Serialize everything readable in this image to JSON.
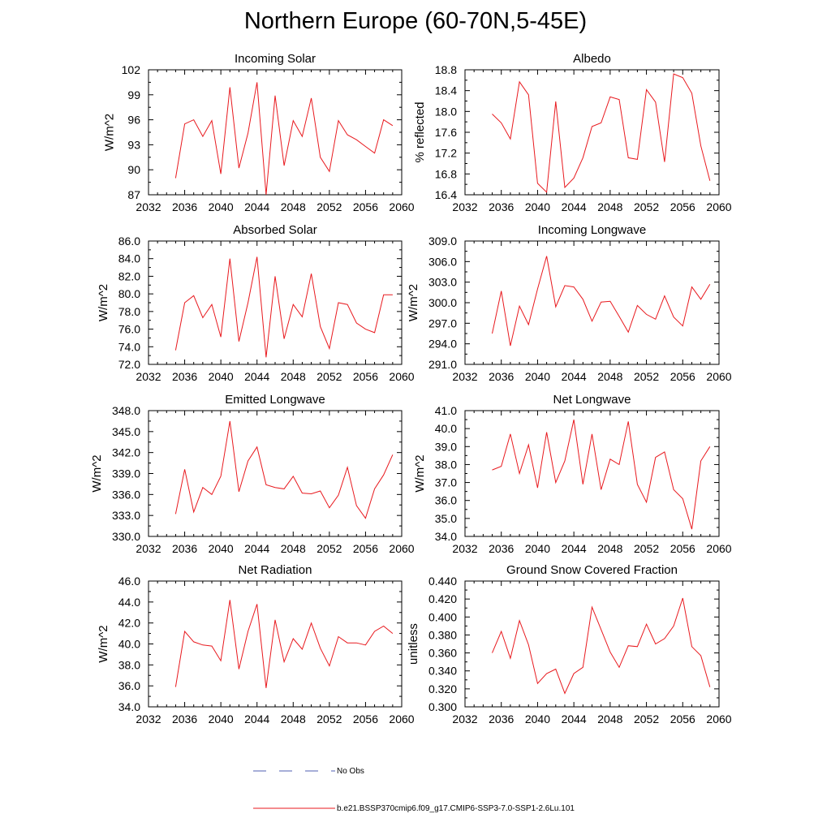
{
  "title": "Northern Europe (60-70N,5-45E)",
  "line_color": "#e8191e",
  "obs_color": "#4f5fb0",
  "legend": {
    "obs_label": "No Obs",
    "model_label": "b.e21.BSSP370cmip6.f09_g17.CMIP6-SSP3-7.0-SSP1-2.6Lu.101"
  },
  "chart_data": [
    {
      "type": "line",
      "title": "Incoming Solar",
      "ylabel": "W/m^2",
      "xlim": [
        2032,
        2060
      ],
      "ylim": [
        87,
        102
      ],
      "xticks": [
        "2032",
        "2036",
        "2040",
        "2044",
        "2048",
        "2052",
        "2056",
        "2060"
      ],
      "yticks": [
        "87",
        "90",
        "93",
        "96",
        "99",
        "102"
      ],
      "x": [
        2035,
        2036,
        2037,
        2038,
        2039,
        2040,
        2041,
        2042,
        2043,
        2044,
        2045,
        2046,
        2047,
        2048,
        2049,
        2050,
        2051,
        2052,
        2053,
        2054,
        2055,
        2056,
        2057,
        2058,
        2059
      ],
      "y": [
        89.0,
        95.5,
        96.0,
        94.0,
        95.9,
        89.5,
        99.9,
        90.2,
        94.4,
        100.5,
        87.0,
        98.9,
        90.5,
        95.9,
        94.0,
        98.6,
        91.5,
        89.8,
        95.9,
        94.2,
        93.6,
        92.8,
        92.0,
        96.0,
        95.3
      ]
    },
    {
      "type": "line",
      "title": "Albedo",
      "ylabel": "% reflected",
      "xlim": [
        2032,
        2060
      ],
      "ylim": [
        16.4,
        18.8
      ],
      "xticks": [
        "2032",
        "2036",
        "2040",
        "2044",
        "2048",
        "2052",
        "2056",
        "2060"
      ],
      "yticks": [
        "16.4",
        "16.8",
        "17.2",
        "17.6",
        "18.0",
        "18.4",
        "18.8"
      ],
      "x": [
        2035,
        2036,
        2037,
        2038,
        2039,
        2040,
        2041,
        2042,
        2043,
        2044,
        2045,
        2046,
        2047,
        2048,
        2049,
        2050,
        2051,
        2052,
        2053,
        2054,
        2055,
        2056,
        2057,
        2058,
        2059
      ],
      "y": [
        17.95,
        17.78,
        17.47,
        18.57,
        18.32,
        16.62,
        16.45,
        18.19,
        16.54,
        16.72,
        17.11,
        17.71,
        17.78,
        18.28,
        18.23,
        17.11,
        17.08,
        18.42,
        18.18,
        17.03,
        18.72,
        18.65,
        18.35,
        17.34,
        16.67
      ]
    },
    {
      "type": "line",
      "title": "Absorbed Solar",
      "ylabel": "W/m^2",
      "xlim": [
        2032,
        2060
      ],
      "ylim": [
        72.0,
        86.0
      ],
      "xticks": [
        "2032",
        "2036",
        "2040",
        "2044",
        "2048",
        "2052",
        "2056",
        "2060"
      ],
      "yticks": [
        "72.0",
        "74.0",
        "76.0",
        "78.0",
        "80.0",
        "82.0",
        "84.0",
        "86.0"
      ],
      "x": [
        2035,
        2036,
        2037,
        2038,
        2039,
        2040,
        2041,
        2042,
        2043,
        2044,
        2045,
        2046,
        2047,
        2048,
        2049,
        2050,
        2051,
        2052,
        2053,
        2054,
        2055,
        2056,
        2057,
        2058,
        2059
      ],
      "y": [
        73.6,
        79.0,
        79.8,
        77.3,
        78.8,
        75.1,
        84.0,
        74.6,
        79.0,
        84.2,
        72.8,
        82.0,
        74.9,
        78.8,
        77.4,
        82.3,
        76.3,
        73.8,
        79.0,
        78.8,
        76.7,
        76.0,
        75.6,
        79.9,
        79.9
      ]
    },
    {
      "type": "line",
      "title": "Incoming Longwave",
      "ylabel": "W/m^2",
      "xlim": [
        2032,
        2060
      ],
      "ylim": [
        291.0,
        309.0
      ],
      "xticks": [
        "2032",
        "2036",
        "2040",
        "2044",
        "2048",
        "2052",
        "2056",
        "2060"
      ],
      "yticks": [
        "291.0",
        "294.0",
        "297.0",
        "300.0",
        "303.0",
        "306.0",
        "309.0"
      ],
      "x": [
        2035,
        2036,
        2037,
        2038,
        2039,
        2040,
        2041,
        2042,
        2043,
        2044,
        2045,
        2046,
        2047,
        2048,
        2049,
        2050,
        2051,
        2052,
        2053,
        2054,
        2055,
        2056,
        2057,
        2058,
        2059
      ],
      "y": [
        295.5,
        301.7,
        293.7,
        299.5,
        296.8,
        302.0,
        306.8,
        299.4,
        302.5,
        302.3,
        300.5,
        297.3,
        300.1,
        300.2,
        298.0,
        295.7,
        299.6,
        298.3,
        297.6,
        301.0,
        297.9,
        296.6,
        302.3,
        300.5,
        302.7
      ]
    },
    {
      "type": "line",
      "title": "Emitted Longwave",
      "ylabel": "W/m^2",
      "xlim": [
        2032,
        2060
      ],
      "ylim": [
        330.0,
        348.0
      ],
      "xticks": [
        "2032",
        "2036",
        "2040",
        "2044",
        "2048",
        "2052",
        "2056",
        "2060"
      ],
      "yticks": [
        "330.0",
        "333.0",
        "336.0",
        "339.0",
        "342.0",
        "345.0",
        "348.0"
      ],
      "x": [
        2035,
        2036,
        2037,
        2038,
        2039,
        2040,
        2041,
        2042,
        2043,
        2044,
        2045,
        2046,
        2047,
        2048,
        2049,
        2050,
        2051,
        2052,
        2053,
        2054,
        2055,
        2056,
        2057,
        2058,
        2059
      ],
      "y": [
        333.2,
        339.6,
        333.5,
        337.0,
        336.0,
        338.6,
        346.5,
        336.4,
        340.8,
        342.8,
        337.4,
        337.0,
        336.8,
        338.6,
        336.2,
        336.1,
        336.5,
        334.1,
        335.9,
        339.9,
        334.4,
        332.6,
        336.8,
        338.8,
        341.7
      ]
    },
    {
      "type": "line",
      "title": "Net Longwave",
      "ylabel": "W/m^2",
      "xlim": [
        2032,
        2060
      ],
      "ylim": [
        34.0,
        41.0
      ],
      "xticks": [
        "2032",
        "2036",
        "2040",
        "2044",
        "2048",
        "2052",
        "2056",
        "2060"
      ],
      "yticks": [
        "34.0",
        "35.0",
        "36.0",
        "37.0",
        "38.0",
        "39.0",
        "40.0",
        "41.0"
      ],
      "x": [
        2035,
        2036,
        2037,
        2038,
        2039,
        2040,
        2041,
        2042,
        2043,
        2044,
        2045,
        2046,
        2047,
        2048,
        2049,
        2050,
        2051,
        2052,
        2053,
        2054,
        2055,
        2056,
        2057,
        2058,
        2059
      ],
      "y": [
        37.7,
        37.9,
        39.7,
        37.5,
        39.1,
        36.7,
        39.8,
        37.0,
        38.2,
        40.5,
        36.9,
        39.7,
        36.6,
        38.3,
        38.0,
        40.4,
        36.9,
        35.9,
        38.4,
        38.7,
        36.6,
        36.1,
        34.4,
        38.2,
        39.0
      ]
    },
    {
      "type": "line",
      "title": "Net Radiation",
      "ylabel": "W/m^2",
      "xlim": [
        2032,
        2060
      ],
      "ylim": [
        34.0,
        46.0
      ],
      "xticks": [
        "2032",
        "2036",
        "2040",
        "2044",
        "2048",
        "2052",
        "2056",
        "2060"
      ],
      "yticks": [
        "34.0",
        "36.0",
        "38.0",
        "40.0",
        "42.0",
        "44.0",
        "46.0"
      ],
      "x": [
        2035,
        2036,
        2037,
        2038,
        2039,
        2040,
        2041,
        2042,
        2043,
        2044,
        2045,
        2046,
        2047,
        2048,
        2049,
        2050,
        2051,
        2052,
        2053,
        2054,
        2055,
        2056,
        2057,
        2058,
        2059
      ],
      "y": [
        35.9,
        41.2,
        40.2,
        39.9,
        39.8,
        38.4,
        44.2,
        37.6,
        41.2,
        43.8,
        35.8,
        42.3,
        38.3,
        40.5,
        39.5,
        42.0,
        39.6,
        37.9,
        40.7,
        40.1,
        40.1,
        39.9,
        41.2,
        41.7,
        41.0
      ]
    },
    {
      "type": "line",
      "title": "Ground Snow Covered Fraction",
      "ylabel": "unitless",
      "xlim": [
        2032,
        2060
      ],
      "ylim": [
        0.3,
        0.44
      ],
      "xticks": [
        "2032",
        "2036",
        "2040",
        "2044",
        "2048",
        "2052",
        "2056",
        "2060"
      ],
      "yticks": [
        "0.300",
        "0.320",
        "0.340",
        "0.360",
        "0.380",
        "0.400",
        "0.420",
        "0.440"
      ],
      "x": [
        2035,
        2036,
        2037,
        2038,
        2039,
        2040,
        2041,
        2042,
        2043,
        2044,
        2045,
        2046,
        2047,
        2048,
        2049,
        2050,
        2051,
        2052,
        2053,
        2054,
        2055,
        2056,
        2057,
        2058,
        2059
      ],
      "y": [
        0.36,
        0.384,
        0.354,
        0.396,
        0.369,
        0.326,
        0.337,
        0.342,
        0.315,
        0.337,
        0.344,
        0.411,
        0.386,
        0.361,
        0.344,
        0.368,
        0.367,
        0.392,
        0.37,
        0.376,
        0.39,
        0.421,
        0.367,
        0.357,
        0.322
      ]
    }
  ]
}
